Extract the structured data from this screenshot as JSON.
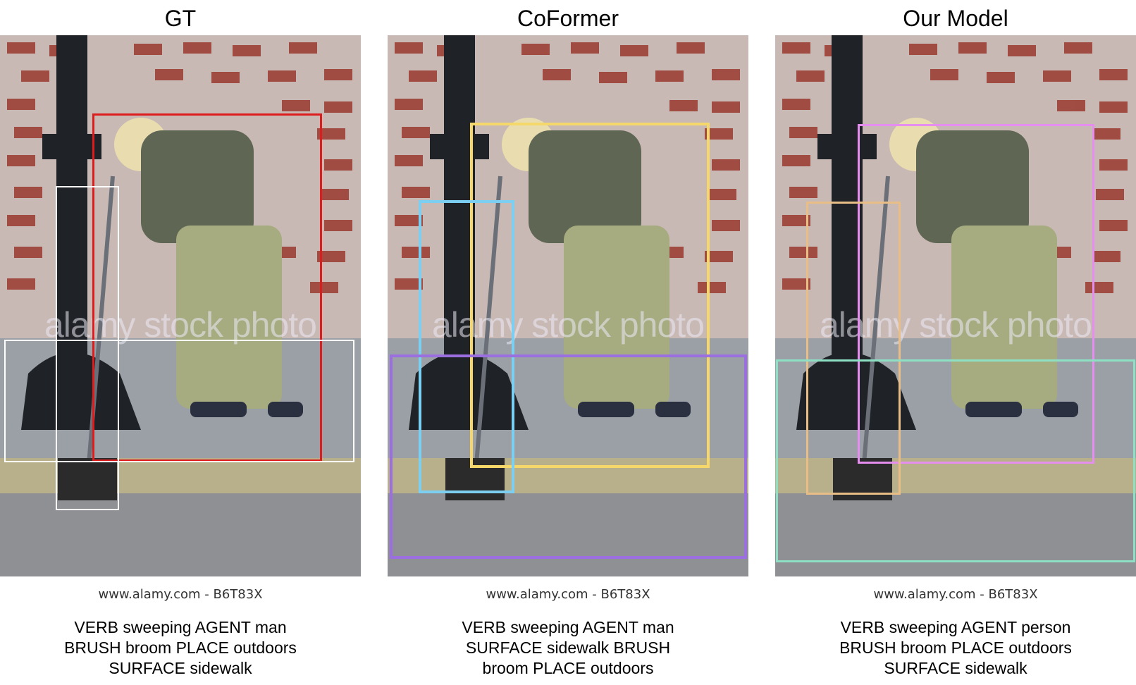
{
  "panels": [
    {
      "title": "GT",
      "watermark": "alamy stock photo",
      "credit": "www.alamy.com - B6T83X",
      "caption": "VERB sweeping AGENT man BRUSH broom PLACE outdoors SURFACE sidewalk",
      "box_colors": [
        "#dd1d1d",
        "#ffffff",
        "#ffffff"
      ]
    },
    {
      "title": "CoFormer",
      "watermark": "alamy stock photo",
      "credit": "www.alamy.com - B6T83X",
      "caption": "VERB sweeping AGENT man SURFACE sidewalk BRUSH broom PLACE outdoors",
      "box_colors": [
        "#f5d76a",
        "#7ccff0",
        "#9b6fe0"
      ]
    },
    {
      "title": "Our Model",
      "watermark": "alamy stock photo",
      "credit": "www.alamy.com - B6T83X",
      "caption": "VERB sweeping AGENT person BRUSH broom PLACE outdoors SURFACE sidewalk",
      "box_colors": [
        "#e58ef0",
        "#e8bd86",
        "#8ee0c4"
      ]
    }
  ]
}
